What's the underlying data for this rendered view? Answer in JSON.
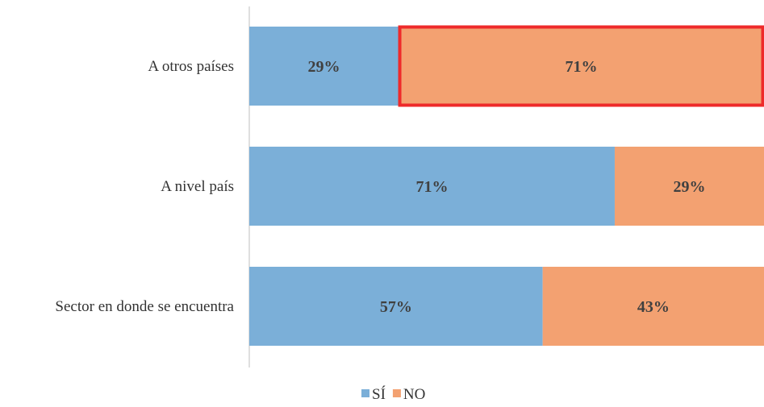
{
  "chart_data": {
    "type": "bar",
    "orientation": "horizontal",
    "stacked": true,
    "normalized_percent": true,
    "categories": [
      "A otros países",
      "A nivel país",
      "Sector en donde se encuentra"
    ],
    "series": [
      {
        "name": "SÍ",
        "color": "#7bafd8",
        "values": [
          29,
          71,
          57
        ],
        "labels": [
          "29%",
          "71%",
          "57%"
        ]
      },
      {
        "name": "NO",
        "color": "#f3a171",
        "values": [
          71,
          29,
          43
        ],
        "labels": [
          "71%",
          "29%",
          "43%"
        ]
      }
    ],
    "xlim": [
      0,
      100
    ],
    "grid": false,
    "legend": {
      "position": "bottom",
      "entries": [
        "SÍ",
        "NO"
      ]
    },
    "highlight": {
      "category": "A otros países",
      "series": "NO",
      "outline_color": "#ee2a2a"
    }
  }
}
